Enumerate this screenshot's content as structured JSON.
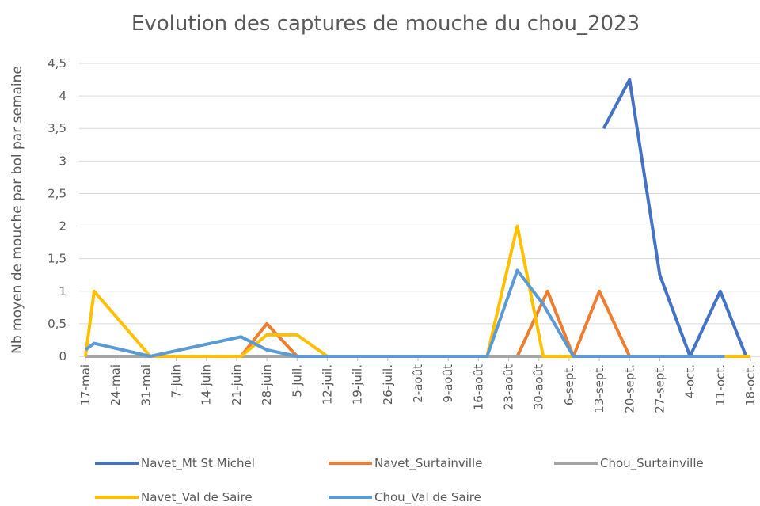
{
  "chart_data": {
    "type": "line",
    "title": "Evolution des captures de mouche du chou_2023",
    "y_label": "Nb moyen de mouche par bol par semaine",
    "xlim": [
      137,
      291
    ],
    "xticks": [
      {
        "value": 137,
        "label": "17-mai"
      },
      {
        "value": 144,
        "label": "24-mai"
      },
      {
        "value": 151,
        "label": "31-mai"
      },
      {
        "value": 158,
        "label": "7-juin"
      },
      {
        "value": 165,
        "label": "14-juin"
      },
      {
        "value": 172,
        "label": "21-juin"
      },
      {
        "value": 179,
        "label": "28-juin"
      },
      {
        "value": 186,
        "label": "5-juil."
      },
      {
        "value": 193,
        "label": "12-juil."
      },
      {
        "value": 200,
        "label": "19-juil."
      },
      {
        "value": 207,
        "label": "26-juil."
      },
      {
        "value": 214,
        "label": "2-août"
      },
      {
        "value": 221,
        "label": "9-août"
      },
      {
        "value": 228,
        "label": "16-août"
      },
      {
        "value": 235,
        "label": "23-août"
      },
      {
        "value": 242,
        "label": "30-août"
      },
      {
        "value": 249,
        "label": "6-sept."
      },
      {
        "value": 256,
        "label": "13-sept."
      },
      {
        "value": 263,
        "label": "20-sept."
      },
      {
        "value": 270,
        "label": "27-sept."
      },
      {
        "value": 277,
        "label": "4-oct."
      },
      {
        "value": 284,
        "label": "11-oct."
      },
      {
        "value": 291,
        "label": "18-oct."
      }
    ],
    "ylim": [
      0,
      4.5
    ],
    "yticks": [
      0,
      {
        "value": 0.5,
        "label": "0,5"
      },
      1,
      {
        "value": 1.5,
        "label": "1,5"
      },
      2,
      {
        "value": 2.5,
        "label": "2,5"
      },
      3,
      {
        "value": 3.5,
        "label": "3,5"
      },
      4,
      {
        "value": 4.5,
        "label": "4,5"
      }
    ],
    "grid": true,
    "legend": "bottom",
    "series": [
      {
        "name": "Navet_Mt St Michel",
        "color": "#4472c4",
        "x": [
          257,
          263,
          270,
          277,
          284,
          290
        ],
        "values": [
          3.5,
          4.25,
          1.25,
          0,
          1,
          0
        ]
      },
      {
        "name": "Navet_Surtainville",
        "color": "#ed7d31",
        "x": [
          173,
          179,
          186,
          230,
          237,
          244,
          250,
          256,
          263
        ],
        "values": [
          0,
          0.5,
          0,
          0,
          0,
          1,
          0,
          1,
          0
        ]
      },
      {
        "name": "Chou_Surtainville",
        "color": "#a5a5a5",
        "x": [
          137,
          152,
          173,
          186,
          230,
          237,
          250
        ],
        "values": [
          0,
          0,
          0,
          0,
          0,
          0,
          0
        ]
      },
      {
        "name": "Navet_Val de Saire",
        "color": "#ffc000",
        "x": [
          137,
          139,
          152,
          173,
          179,
          186,
          193,
          200,
          207,
          214,
          221,
          228,
          230,
          237,
          243,
          250,
          291
        ],
        "values": [
          0,
          1,
          0,
          0,
          0.33,
          0.33,
          0,
          0,
          0,
          0,
          0,
          0,
          0,
          2,
          0,
          0,
          0
        ]
      },
      {
        "name": "Chou_Val de Saire",
        "color": "#5b9bd5",
        "x": [
          137,
          139,
          152,
          173,
          179,
          186,
          193,
          200,
          207,
          214,
          221,
          228,
          230,
          237,
          243,
          250,
          257,
          264,
          271,
          278,
          285
        ],
        "values": [
          0.1,
          0.2,
          0,
          0.3,
          0.1,
          0,
          0,
          0,
          0,
          0,
          0,
          0,
          0,
          1.32,
          0.8,
          0,
          0,
          0,
          0,
          0,
          0
        ]
      }
    ]
  }
}
